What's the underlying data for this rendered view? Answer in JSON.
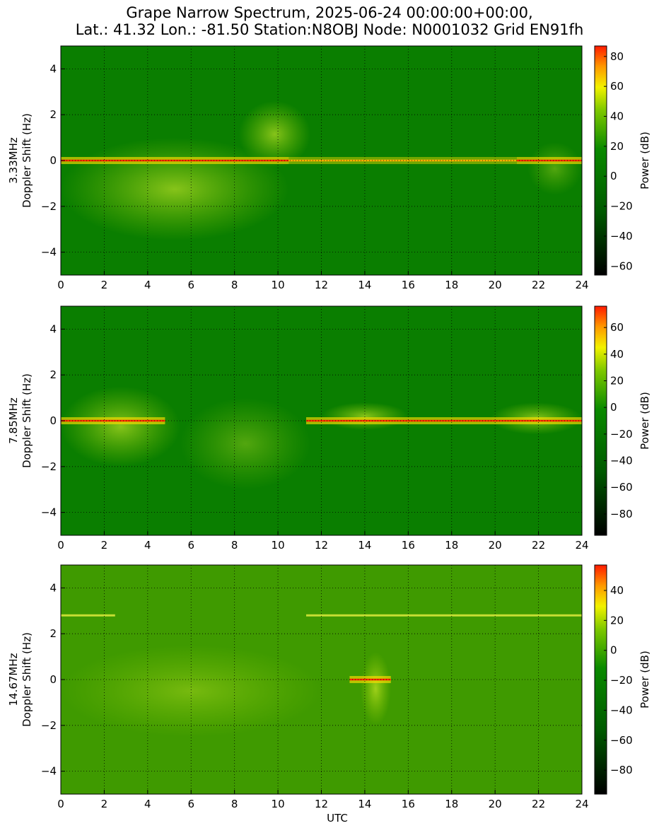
{
  "title_line1": "Grape Narrow Spectrum, 2025-06-24 00:00:00+00:00,",
  "title_line2": "Lat.: 41.32 Lon.: -81.50 Station:N8OBJ Node: N0001032 Grid EN91fh",
  "xlabel": "UTC",
  "chart_data": [
    {
      "type": "heatmap",
      "ylabel_line1": "3.33MHz",
      "ylabel_line2": "Doppler Shift (Hz)",
      "xlim": [
        0,
        24
      ],
      "ylim": [
        -5,
        5
      ],
      "x_ticks": [
        0,
        2,
        4,
        6,
        8,
        10,
        12,
        14,
        16,
        18,
        20,
        22,
        24
      ],
      "y_ticks": [
        -4,
        -2,
        0,
        2,
        4
      ],
      "colorbar": {
        "label": "Power (dB)",
        "range": [
          -66,
          87
        ],
        "ticks": [
          -60,
          -40,
          -20,
          0,
          20,
          40,
          60,
          80
        ]
      },
      "carrier_segments": [
        {
          "x": [
            0,
            10.5
          ],
          "level": "strong"
        },
        {
          "x": [
            10.5,
            21
          ],
          "level": "medium"
        },
        {
          "x": [
            21,
            24
          ],
          "level": "strong"
        }
      ],
      "bright_regions": [
        {
          "x": [
            0,
            10.5
          ],
          "y": [
            -3.5,
            1
          ],
          "level": "medium"
        },
        {
          "x": [
            8.2,
            11.5
          ],
          "y": [
            -0.3,
            2.6
          ],
          "level": "medium"
        },
        {
          "x": [
            21.5,
            24
          ],
          "y": [
            -1.5,
            0.8
          ],
          "level": "low"
        }
      ]
    },
    {
      "type": "heatmap",
      "ylabel_line1": "7.85MHz",
      "ylabel_line2": "Doppler Shift (Hz)",
      "xlim": [
        0,
        24
      ],
      "ylim": [
        -5,
        5
      ],
      "x_ticks": [
        0,
        2,
        4,
        6,
        8,
        10,
        12,
        14,
        16,
        18,
        20,
        22,
        24
      ],
      "y_ticks": [
        -4,
        -2,
        0,
        2,
        4
      ],
      "colorbar": {
        "label": "Power (dB)",
        "range": [
          -96,
          76
        ],
        "ticks": [
          -80,
          -60,
          -40,
          -20,
          0,
          20,
          40,
          60
        ]
      },
      "carrier_segments": [
        {
          "x": [
            0,
            4.8
          ],
          "level": "strong"
        },
        {
          "x": [
            11.3,
            19.8
          ],
          "level": "strong"
        },
        {
          "x": [
            19.8,
            24
          ],
          "level": "strong"
        }
      ],
      "bright_regions": [
        {
          "x": [
            0,
            5.5
          ],
          "y": [
            -2,
            1.5
          ],
          "level": "medium"
        },
        {
          "x": [
            5.5,
            11.5
          ],
          "y": [
            -3,
            1
          ],
          "level": "low"
        },
        {
          "x": [
            12,
            16
          ],
          "y": [
            -0.4,
            0.8
          ],
          "level": "medium"
        },
        {
          "x": [
            19.8,
            24
          ],
          "y": [
            -0.6,
            0.8
          ],
          "level": "medium"
        }
      ]
    },
    {
      "type": "heatmap",
      "ylabel_line1": "14.67MHz",
      "ylabel_line2": "Doppler Shift (Hz)",
      "xlim": [
        0,
        24
      ],
      "ylim": [
        -5,
        5
      ],
      "x_ticks": [
        0,
        2,
        4,
        6,
        8,
        10,
        12,
        14,
        16,
        18,
        20,
        22,
        24
      ],
      "y_ticks": [
        -4,
        -2,
        0,
        2,
        4
      ],
      "colorbar": {
        "label": "Power (dB)",
        "range": [
          -96,
          57
        ],
        "ticks": [
          -80,
          -60,
          -40,
          -20,
          0,
          20,
          40
        ]
      },
      "carrier_segments": [
        {
          "x": [
            13.3,
            15.2
          ],
          "level": "strong"
        }
      ],
      "lines": [
        {
          "x": [
            0,
            2.5
          ],
          "y": 2.8
        },
        {
          "x": [
            11.3,
            24
          ],
          "y": 2.8
        }
      ],
      "bright_regions": [
        {
          "x": [
            0,
            12
          ],
          "y": [
            -2.5,
            1.5
          ],
          "level": "low"
        },
        {
          "x": [
            13.8,
            15.2
          ],
          "y": [
            -2,
            1.2
          ],
          "level": "medium"
        }
      ]
    }
  ]
}
